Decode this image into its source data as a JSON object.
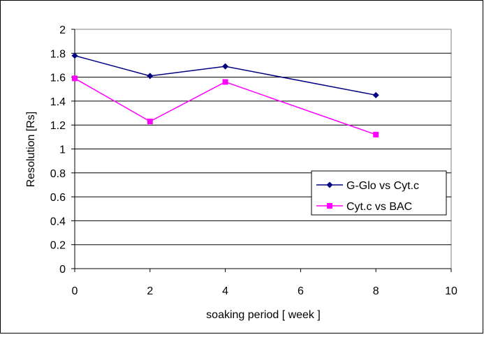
{
  "chart_data": {
    "type": "line",
    "title": "",
    "xlabel": "soaking period [ week ]",
    "ylabel": "Resolution [Rs]",
    "xlim": [
      0,
      10
    ],
    "ylim": [
      0,
      2
    ],
    "x_ticks": [
      "0",
      "2",
      "4",
      "6",
      "8",
      "10"
    ],
    "y_ticks": [
      "0",
      "0.2",
      "0.4",
      "0.6",
      "0.8",
      "1",
      "1.2",
      "1.4",
      "1.6",
      "1.8",
      "2"
    ],
    "grid": "horizontal",
    "legend_position": "right-middle",
    "series": [
      {
        "name": "G-Glo vs Cyt.c",
        "color": "#000080",
        "marker": "diamond",
        "x": [
          0,
          2,
          4,
          8
        ],
        "y": [
          1.78,
          1.61,
          1.69,
          1.45
        ]
      },
      {
        "name": "Cyt.c vs BAC",
        "color": "#FF00FF",
        "marker": "square",
        "x": [
          0,
          2,
          4,
          8
        ],
        "y": [
          1.59,
          1.23,
          1.56,
          1.12
        ]
      }
    ]
  }
}
